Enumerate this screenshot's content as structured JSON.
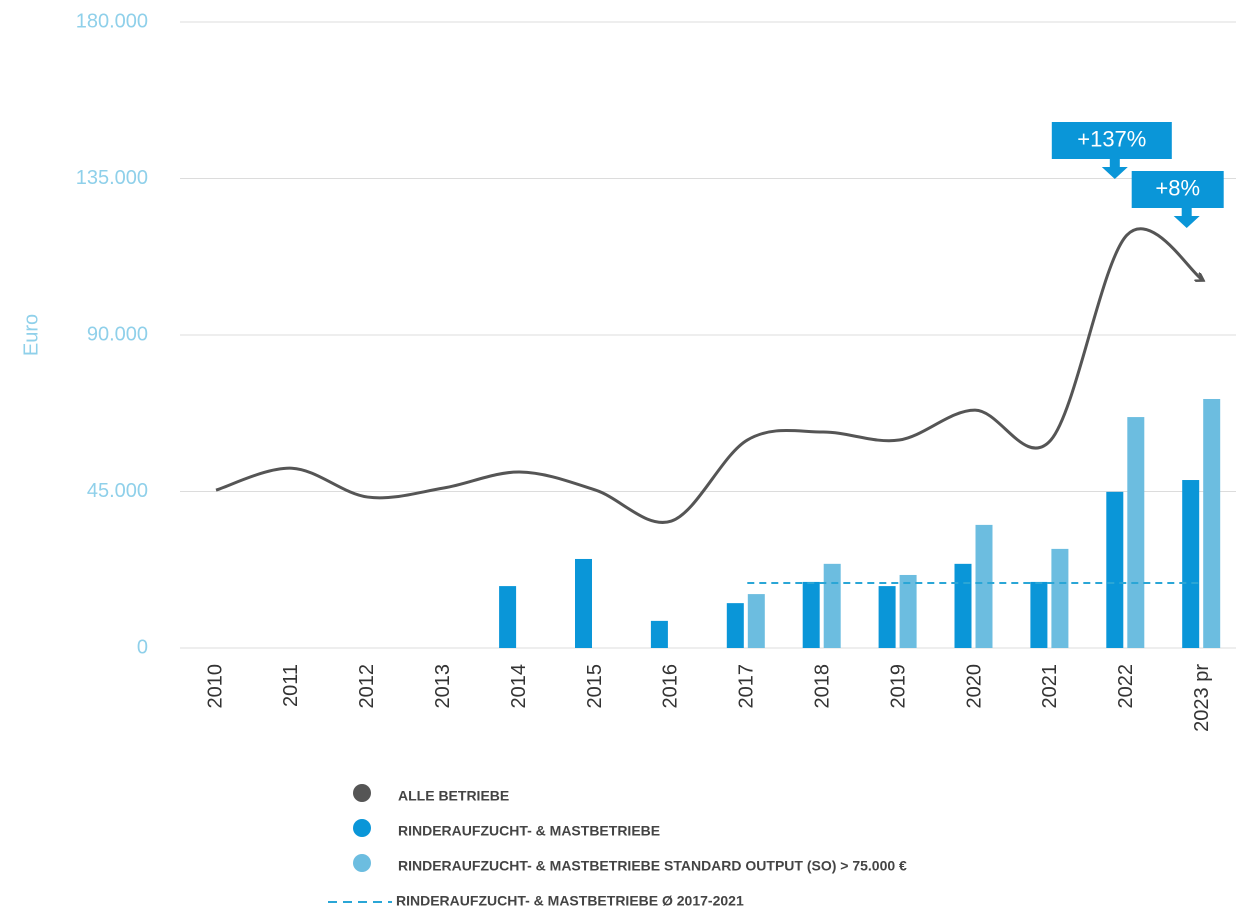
{
  "chart_data": {
    "type": "bar",
    "y_label": "Euro",
    "categories": [
      "2010",
      "2011",
      "2012",
      "2013",
      "2014",
      "2015",
      "2016",
      "2017",
      "2018",
      "2019",
      "2020",
      "2021",
      "2022",
      "2023 pr"
    ],
    "ylim": [
      0,
      180000
    ],
    "yticks": [
      0,
      {
        "value": 45000,
        "label": "45.000"
      },
      {
        "value": 90000,
        "label": "90.000"
      },
      {
        "value": 135000,
        "label": "135.000"
      },
      {
        "value": 180000,
        "label": "180.000"
      }
    ],
    "grid": true,
    "series": [
      {
        "name": "ALLE BETRIEBE",
        "type": "line",
        "color": "#555555",
        "values": [
          45400,
          51700,
          43400,
          46000,
          50600,
          45400,
          36500,
          59800,
          62100,
          59800,
          68400,
          59800,
          118700,
          105800
        ]
      },
      {
        "name": "RINDERAUFZUCHT- & MASTBETRIEBE",
        "type": "bar",
        "color": "#0a96d8",
        "values": [
          null,
          null,
          null,
          null,
          17800,
          25600,
          7800,
          12900,
          19000,
          17800,
          24200,
          19000,
          44900,
          48300
        ]
      },
      {
        "name": "RINDERAUFZUCHT- & MASTBETRIEBE   STANDARD OUTPUT (SO) > 75.000  €",
        "type": "bar",
        "color": "#6cbde0",
        "values": [
          null,
          null,
          null,
          null,
          null,
          null,
          null,
          15500,
          24200,
          21000,
          35400,
          28500,
          66400,
          71600
        ]
      },
      {
        "name": "RINDERAUFZUCHT- & MASTBETRIEBE  Ø 2017-2021",
        "type": "dashed",
        "color": "#2aa6d6",
        "values": [
          null,
          null,
          null,
          null,
          null,
          null,
          null,
          18700,
          18700,
          18700,
          18700,
          18700,
          18700,
          18700
        ]
      }
    ],
    "annotations": [
      {
        "text": "+137%",
        "category": "2022"
      },
      {
        "text": "+8%",
        "category": "2023 pr"
      }
    ]
  }
}
